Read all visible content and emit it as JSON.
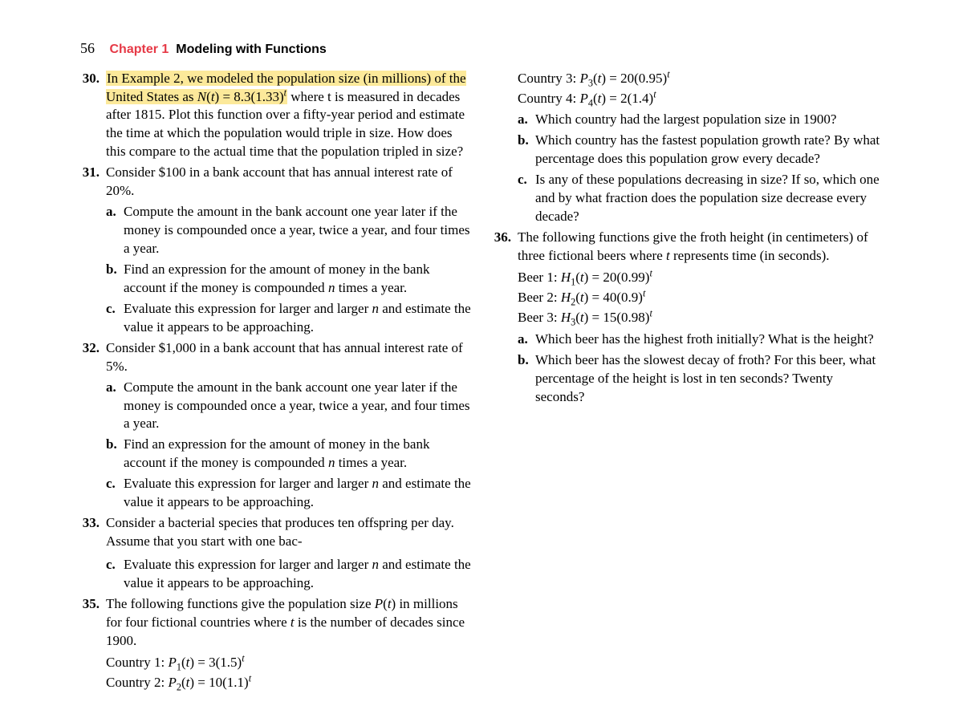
{
  "header": {
    "page_number": "56",
    "chapter_label": "Chapter 1",
    "chapter_title": "Modeling with Functions"
  },
  "p30": {
    "num": "30.",
    "hl": "In Example 2, we modeled the population size (in millions) of the United States as ",
    "eq": "N(t) = 8.3(1.33)",
    "rest": " where t is measured in decades after 1815. Plot this function over a fifty-year period and estimate the time at which the population would triple in size. How does this compare to the actual time that the population tripled in size?"
  },
  "p31": {
    "num": "31.",
    "intro": "Consider $100 in a bank account that has annual interest rate of 20%.",
    "a": "Compute the amount in the bank account one year later if the money is compounded once a year, twice a year, and four times a year.",
    "b": "Find an expression for the amount of money in the bank account if the money is compounded n times a year.",
    "c": "Evaluate this expression for larger and larger n and estimate the value it appears to be approaching."
  },
  "p32": {
    "num": "32.",
    "intro": "Consider $1,000 in a bank account that has annual interest rate of 5%.",
    "a": "Compute the amount in the bank account one year later if the money is compounded once a year, twice a year, and four times a year.",
    "b": "Find an expression for the amount of money in the bank account if the money is compounded n times a year.",
    "c": "Evaluate this expression for larger and larger n and estimate the value it appears to be approaching."
  },
  "p33": {
    "num": "33.",
    "text": "Consider a bacterial species that produces ten offspring per day. Assume that you start with one bac-"
  },
  "p34c": {
    "c": "Evaluate this expression for larger and larger n and estimate the value it appears to be approaching."
  },
  "p35": {
    "num": "35.",
    "intro": "The following functions give the population size P(t) in millions for four fictional countries where t is the number of decades since 1900.",
    "eq1_label": "Country 1: ",
    "eq2_label": "Country 2: ",
    "eq3_label": "Country 3: ",
    "eq4_label": "Country 4: ",
    "a": "Which country had the largest population size in 1900?",
    "b": "Which country has the fastest population growth rate? By what percentage does this population grow every decade?",
    "c": "Is any of these populations decreasing in size? If so, which one and by what fraction does the population size decrease every decade?"
  },
  "p36": {
    "num": "36.",
    "intro": "The following functions give the froth height (in centimeters) of three fictional beers where t represents time (in seconds).",
    "eq1_label": "Beer 1: ",
    "eq2_label": "Beer 2: ",
    "eq3_label": "Beer 3: ",
    "a": "Which beer has the highest froth initially? What is the height?",
    "b": "Which beer has the slowest decay of froth? For this beer, what percentage of the height is lost in ten seconds? Twenty seconds?"
  },
  "labels": {
    "a": "a.",
    "b": "b.",
    "c": "c."
  }
}
